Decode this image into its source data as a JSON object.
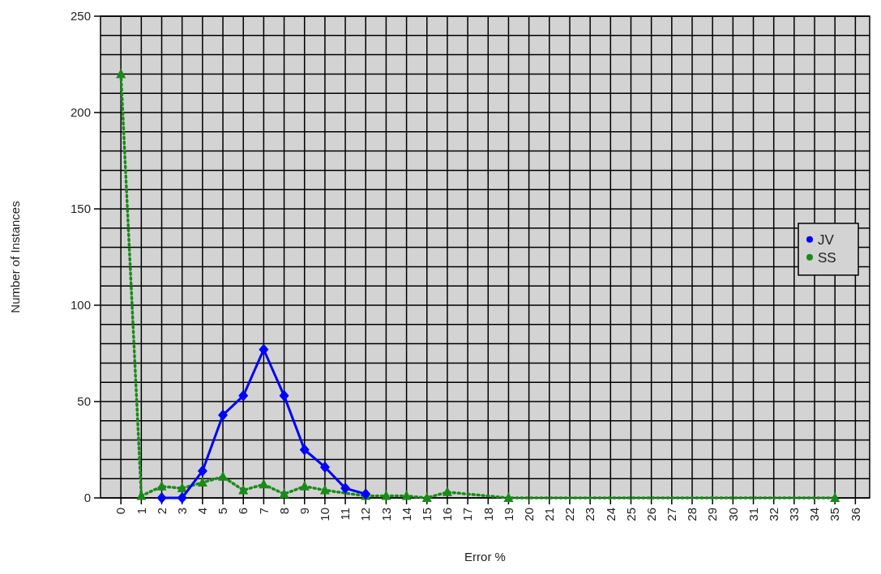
{
  "chart_data": {
    "type": "line",
    "xlabel": "Error %",
    "ylabel": "Number of Instances",
    "categories": [
      "0",
      "1",
      "2",
      "3",
      "4",
      "5",
      "6",
      "7",
      "8",
      "9",
      "10",
      "11",
      "12",
      "13",
      "14",
      "15",
      "16",
      "17",
      "18",
      "19",
      "20",
      "21",
      "22",
      "23",
      "24",
      "25",
      "26",
      "27",
      "28",
      "29",
      "30",
      "31",
      "32",
      "33",
      "34",
      "35",
      "36"
    ],
    "series": [
      {
        "name": "JV",
        "color": "#0000ff",
        "marker": "diamond",
        "line_style": "solid",
        "values": [
          null,
          null,
          0,
          0,
          14,
          43,
          53,
          77,
          53,
          25,
          16,
          5,
          2,
          null,
          null,
          null,
          null,
          null,
          null,
          null,
          null,
          null,
          null,
          null,
          null,
          null,
          null,
          null,
          null,
          null,
          null,
          null,
          null,
          null,
          null,
          null,
          null
        ]
      },
      {
        "name": "SS",
        "color": "#1a8a1a",
        "marker": "triangle",
        "line_style": "dotted",
        "values": [
          220,
          1,
          6,
          5,
          8,
          11,
          4,
          7,
          2,
          6,
          4,
          null,
          1,
          1,
          1,
          0,
          3,
          null,
          null,
          0,
          null,
          null,
          null,
          null,
          null,
          null,
          null,
          null,
          null,
          null,
          null,
          null,
          null,
          null,
          null,
          0,
          null
        ]
      }
    ],
    "ylim": [
      0,
      250
    ],
    "yticks": [
      0,
      {
        "value": 10,
        "label": null
      },
      {
        "value": 20,
        "label": null
      },
      {
        "value": 30,
        "label": null
      },
      {
        "value": 40,
        "label": null
      },
      50,
      {
        "value": 60,
        "label": null
      },
      {
        "value": 70,
        "label": null
      },
      {
        "value": 80,
        "label": null
      },
      {
        "value": 90,
        "label": null
      },
      100,
      {
        "value": 110,
        "label": null
      },
      {
        "value": 120,
        "label": null
      },
      {
        "value": 130,
        "label": null
      },
      {
        "value": 140,
        "label": null
      },
      150,
      {
        "value": 160,
        "label": null
      },
      {
        "value": 170,
        "label": null
      },
      {
        "value": 180,
        "label": null
      },
      {
        "value": 190,
        "label": null
      },
      200,
      {
        "value": 210,
        "label": null
      },
      {
        "value": 220,
        "label": null
      },
      {
        "value": 230,
        "label": null
      },
      {
        "value": 240,
        "label": null
      },
      250
    ],
    "grid": true,
    "legend": "right"
  }
}
